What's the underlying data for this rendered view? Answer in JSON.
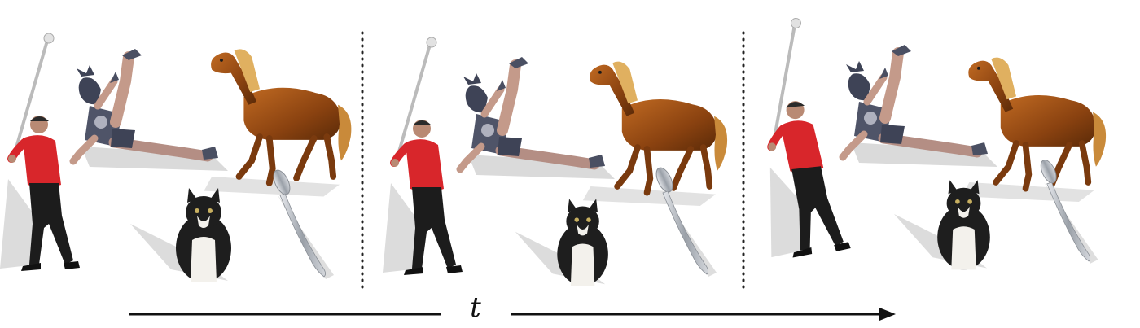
{
  "time_axis": {
    "label": "t"
  },
  "frames": [
    {
      "objects": [
        "golfer",
        "kicking-person",
        "horse",
        "cat",
        "spoon"
      ]
    },
    {
      "objects": [
        "golfer",
        "kicking-person",
        "horse",
        "cat",
        "spoon"
      ]
    },
    {
      "objects": [
        "golfer",
        "kicking-person",
        "horse",
        "cat",
        "spoon"
      ]
    }
  ],
  "colors": {
    "background": "#ffffff",
    "shadow": "#d9d9d9",
    "shirt_red": "#d8262b",
    "pants_black": "#1c1c1c",
    "body_gray": "#4f5468",
    "skin": "#c49a8a",
    "horse_brown": "#9a4e14",
    "horse_mane": "#e0b060",
    "cat_black": "#1e1e1e",
    "cat_white": "#f3f1ec",
    "spoon_silver": "#b9bdc4",
    "divider": "#222222"
  }
}
